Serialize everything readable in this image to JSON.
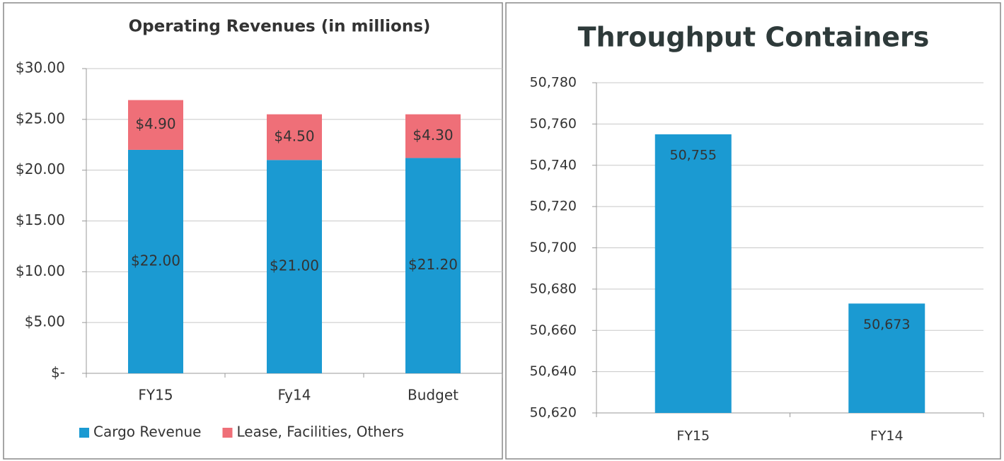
{
  "chart_data": [
    {
      "type": "bar",
      "stacked": true,
      "title": "Operating Revenues (in millions)",
      "categories": [
        "FY15",
        "Fy14",
        "Budget"
      ],
      "series": [
        {
          "name": "Cargo Revenue",
          "color": "#1b9ad2",
          "values": [
            22,
            21,
            21.2
          ],
          "value_labels": [
            "$22.00",
            "$21.00",
            "$21.20"
          ]
        },
        {
          "name": "Lease, Facilities, Others",
          "color": "#ef6f78",
          "values": [
            4.9,
            4.5,
            4.3
          ],
          "value_labels": [
            "$4.90",
            "$4.50",
            "$4.30"
          ]
        }
      ],
      "ylim": [
        0,
        30
      ],
      "yticks": [
        {
          "value": 0,
          "label": "$-"
        },
        {
          "value": 5,
          "label": "$5.00"
        },
        {
          "value": 10,
          "label": "$10.00"
        },
        {
          "value": 15,
          "label": "$15.00"
        },
        {
          "value": 20,
          "label": "$20.00"
        },
        {
          "value": 25,
          "label": "$25.00"
        },
        {
          "value": 30,
          "label": "$30.00"
        }
      ],
      "grid": true,
      "legend": "bottom"
    },
    {
      "type": "bar",
      "title": "Throughput Containers",
      "categories": [
        "FY15",
        "FY14"
      ],
      "values": [
        50755,
        50673
      ],
      "value_labels": [
        "50,755",
        "50,673"
      ],
      "color": "#1b9ad2",
      "ylim": [
        50620,
        50780
      ],
      "yticks": [
        {
          "value": 50620,
          "label": "50,620"
        },
        {
          "value": 50640,
          "label": "50,640"
        },
        {
          "value": 50660,
          "label": "50,660"
        },
        {
          "value": 50680,
          "label": "50,680"
        },
        {
          "value": 50700,
          "label": "50,700"
        },
        {
          "value": 50720,
          "label": "50,720"
        },
        {
          "value": 50740,
          "label": "50,740"
        },
        {
          "value": 50760,
          "label": "50,760"
        },
        {
          "value": 50780,
          "label": "50,780"
        }
      ],
      "grid": true
    }
  ]
}
